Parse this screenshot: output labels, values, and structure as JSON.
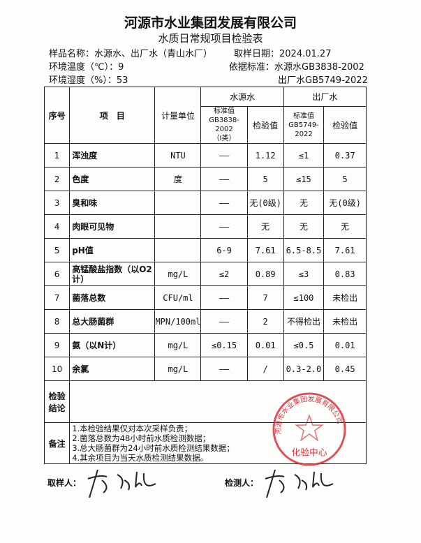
{
  "header": {
    "company": "河源市水业集团发展有限公司",
    "form_title": "水质日常规项目检验表"
  },
  "meta": {
    "sample_name": "样品名称：水源水、出厂水（青山水厂）",
    "sample_date": "取样日期：2024.01.27",
    "temperature": "环境温度（℃）：9",
    "basis": "依据标准：水源水GB3838-2002",
    "humidity": "环境湿度（%）：53",
    "basis2": "出厂水GB5749-2022"
  },
  "table": {
    "headers": {
      "no": "序号",
      "item": "项　目",
      "unit": "计量单位",
      "source": "水源水",
      "plant": "出厂水",
      "std_src": "标准值",
      "std_src_code": "GB3838-2002",
      "std_src_class": "（Ⅰ类）",
      "val": "检验值",
      "std_plant": "标准值",
      "std_plant_code": "GB5749-2022"
    },
    "rows": [
      {
        "no": "1",
        "item": "浑浊度",
        "unit": "NTU",
        "std_src": "——",
        "val_src": "1.12",
        "std_plant": "≤1",
        "val_plant": "0.37"
      },
      {
        "no": "2",
        "item": "色度",
        "unit": "度",
        "std_src": "——",
        "val_src": "5",
        "std_plant": "≤15",
        "val_plant": "5"
      },
      {
        "no": "3",
        "item": "臭和味",
        "unit": "",
        "std_src": "——",
        "val_src": "无(0级)",
        "std_plant": "无",
        "val_plant": "无(0级)"
      },
      {
        "no": "4",
        "item": "肉眼可见物",
        "unit": "",
        "std_src": "——",
        "val_src": "无",
        "std_plant": "无",
        "val_plant": "无"
      },
      {
        "no": "5",
        "item": "pH值",
        "unit": "",
        "std_src": "6-9",
        "val_src": "7.61",
        "std_plant": "6.5-8.5",
        "val_plant": "7.61"
      },
      {
        "no": "6",
        "item": "高锰酸盐指数（以O2计）",
        "unit": "mg/L",
        "std_src": "≤2",
        "val_src": "0.89",
        "std_plant": "≤3",
        "val_plant": "0.83"
      },
      {
        "no": "7",
        "item": "菌落总数",
        "unit": "CFU/ml",
        "std_src": "——",
        "val_src": "7",
        "std_plant": "≤100",
        "val_plant": "未检出"
      },
      {
        "no": "8",
        "item": "总大肠菌群",
        "unit": "MPN/100ml",
        "std_src": "——",
        "val_src": "2",
        "std_plant": "不得检出",
        "val_plant": "未检出"
      },
      {
        "no": "9",
        "item": "氨（以N计）",
        "unit": "mg/L",
        "std_src": "≤0.15",
        "val_src": "0.01",
        "std_plant": "≤0.5",
        "val_plant": "0.01"
      },
      {
        "no": "10",
        "item": "余氯",
        "unit": "mg/L",
        "std_src": "——",
        "val_src": "/",
        "std_plant": "0.3-2.0",
        "val_plant": "0.45"
      }
    ],
    "conclusion_label": "检验结论",
    "notes_label": "备注",
    "notes": [
      "1.本检验结果仅对本次采样负责；",
      "2.菌落总数为48小时前水质检测数据；",
      "3.总大肠菌群为24小时前水质检测结果数据；",
      "4.其余项目为当天水质检测结果数据。"
    ]
  },
  "footer": {
    "sampler_label": "取样人：",
    "tester_label": "检测人："
  },
  "stamp": {
    "text": "河源市水业集团发展有限公司",
    "center": "化验中心",
    "color": "#d8303a"
  }
}
